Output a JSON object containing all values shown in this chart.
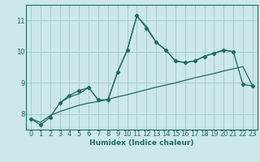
{
  "xlabel": "Humidex (Indice chaleur)",
  "xlim": [
    -0.5,
    23.5
  ],
  "ylim": [
    7.5,
    11.5
  ],
  "yticks": [
    8,
    9,
    10,
    11
  ],
  "xticks": [
    0,
    1,
    2,
    3,
    4,
    5,
    6,
    7,
    8,
    9,
    10,
    11,
    12,
    13,
    14,
    15,
    16,
    17,
    18,
    19,
    20,
    21,
    22,
    23
  ],
  "bg_color": "#cce8e8",
  "grid_color": "#aacccc",
  "line_color": "#1e6b5e",
  "line1_x": [
    0,
    1,
    2,
    3,
    4,
    5,
    6,
    7,
    8,
    9,
    10,
    11,
    12,
    13,
    14,
    15,
    16,
    17,
    18,
    19,
    20,
    21,
    22,
    23
  ],
  "line1_y": [
    7.85,
    7.65,
    7.9,
    8.35,
    8.6,
    8.75,
    8.85,
    8.45,
    8.45,
    9.35,
    10.05,
    11.15,
    10.75,
    10.3,
    10.05,
    9.7,
    9.65,
    9.7,
    9.85,
    9.95,
    10.05,
    10.0,
    8.95,
    8.9
  ],
  "line2_x": [
    3,
    4,
    5,
    6,
    7,
    8,
    9,
    10,
    11,
    12,
    13,
    14,
    15,
    16,
    17,
    18,
    19,
    20,
    21
  ],
  "line2_y": [
    8.35,
    8.55,
    8.65,
    8.85,
    8.45,
    8.45,
    9.35,
    10.05,
    11.15,
    10.8,
    10.3,
    10.05,
    9.7,
    9.65,
    9.7,
    9.85,
    9.95,
    10.05,
    10.0
  ],
  "line3_x": [
    0,
    1,
    2,
    3,
    4,
    5,
    6,
    7,
    8,
    9,
    10,
    11,
    12,
    13,
    14,
    15,
    16,
    17,
    18,
    19,
    20,
    21,
    22,
    23
  ],
  "line3_y": [
    7.85,
    7.73,
    7.95,
    8.08,
    8.18,
    8.28,
    8.35,
    8.4,
    8.47,
    8.55,
    8.62,
    8.7,
    8.78,
    8.86,
    8.93,
    9.0,
    9.08,
    9.16,
    9.23,
    9.3,
    9.38,
    9.45,
    9.52,
    8.9
  ]
}
